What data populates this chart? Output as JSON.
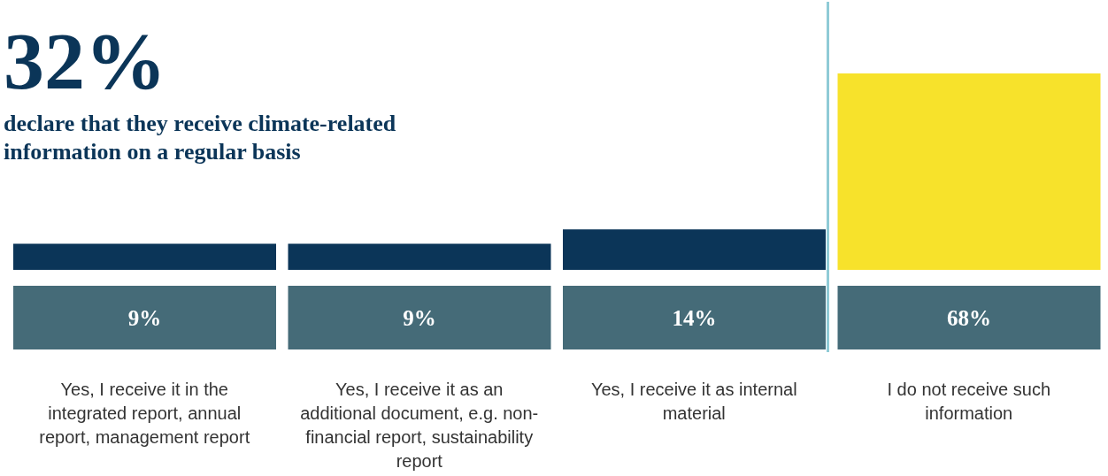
{
  "chart_data": {
    "type": "bar",
    "title": "32%",
    "subtitle": "declare that they receive climate-related information on a regular basis",
    "categories": [
      "Yes, I receive it in the integrated report, annual report, management report",
      "Yes, I receive it as an additional document, e.g. non-financial report, sustainability report",
      "Yes, I receive it as internal material",
      "I do not receive such information"
    ],
    "values": [
      9,
      9,
      14,
      68
    ],
    "colors": [
      "#0b3558",
      "#0b3558",
      "#0b3558",
      "#f7e22b"
    ],
    "value_labels": [
      "9%",
      "9%",
      "14%",
      "68%"
    ]
  }
}
